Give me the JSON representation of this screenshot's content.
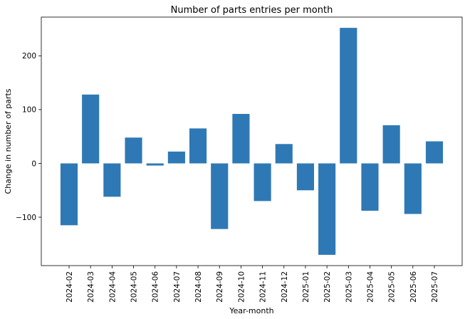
{
  "chart_data": {
    "type": "bar",
    "title": "Number of parts entries per month",
    "xlabel": "Year-month",
    "ylabel": "Change in number of parts",
    "categories": [
      "2024-02",
      "2024-03",
      "2024-04",
      "2024-05",
      "2024-06",
      "2024-07",
      "2024-08",
      "2024-09",
      "2024-10",
      "2024-11",
      "2024-12",
      "2025-01",
      "2025-02",
      "2025-03",
      "2025-04",
      "2025-05",
      "2025-06",
      "2025-07"
    ],
    "values": [
      -115,
      128,
      -62,
      48,
      -4,
      22,
      65,
      -122,
      92,
      -70,
      36,
      -50,
      -170,
      252,
      -88,
      71,
      -94,
      41
    ],
    "ylim": [
      -190,
      272
    ],
    "yticks": [
      -100,
      0,
      100,
      200
    ],
    "ytick_labels": [
      "−100",
      "0",
      "100",
      "200"
    ],
    "bar_color": "#2e79b5",
    "grid": false,
    "legend": "none"
  }
}
